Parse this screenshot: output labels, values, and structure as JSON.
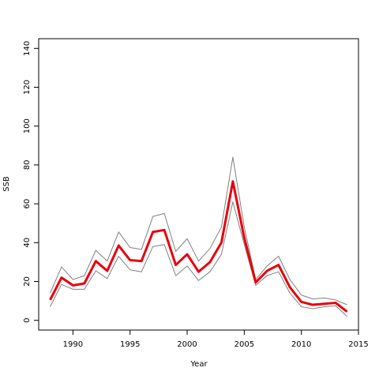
{
  "chart_data": {
    "type": "line",
    "title": "",
    "xlabel": "Year",
    "ylabel": "SSB",
    "xlim": [
      1987,
      2015
    ],
    "ylim": [
      -5,
      145
    ],
    "xticks": [
      1990,
      1995,
      2000,
      2005,
      2010,
      2015
    ],
    "yticks": [
      0,
      20,
      40,
      60,
      80,
      100,
      120,
      140
    ],
    "grid": false,
    "legend": "none",
    "x": [
      1988,
      1989,
      1990,
      1991,
      1992,
      1993,
      1994,
      1995,
      1996,
      1997,
      1998,
      1999,
      2000,
      2001,
      2002,
      2003,
      2004,
      2005,
      2006,
      2007,
      2008,
      2009,
      2010,
      2011,
      2012,
      2013,
      2014
    ],
    "series": [
      {
        "role": "upper",
        "color": "#808080",
        "values": [
          14,
          27.5,
          21,
          23,
          36,
          30.5,
          45.5,
          37.5,
          36.5,
          53.5,
          55,
          35.5,
          42,
          30.5,
          37,
          48,
          84,
          48,
          21,
          28,
          33,
          21,
          13,
          11,
          11.5,
          10.5,
          8
        ]
      },
      {
        "role": "estimate",
        "color": "#e8000b",
        "values": [
          10.5,
          22,
          18,
          19,
          30.5,
          25.5,
          38.5,
          31,
          30.5,
          45.5,
          46.5,
          28.5,
          34,
          25,
          30,
          40,
          71.5,
          42.5,
          19.5,
          25.5,
          28.5,
          17,
          9.5,
          8,
          8.5,
          9,
          4.5
        ]
      },
      {
        "role": "lower",
        "color": "#808080",
        "values": [
          7,
          18.5,
          16,
          16,
          25.5,
          21.5,
          33,
          26,
          25,
          38,
          39,
          23,
          28,
          20.5,
          25,
          34,
          61,
          39,
          18,
          23,
          25,
          14,
          7,
          6,
          7,
          7.5,
          2
        ]
      }
    ]
  }
}
